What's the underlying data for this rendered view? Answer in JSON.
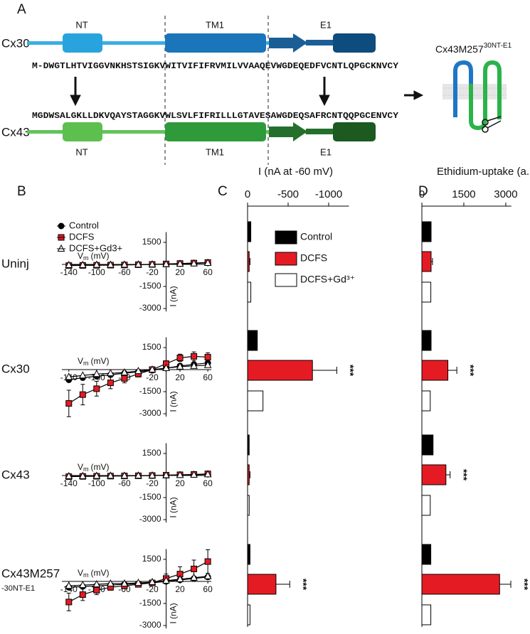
{
  "panel_a": {
    "label": "A",
    "top_name": "Cx30",
    "bottom_name": "Cx43",
    "top_domains": [
      "NT",
      "TM1",
      "E1"
    ],
    "bottom_domains": [
      "NT",
      "TM1",
      "E1"
    ],
    "top_sequence": "M-DWGTLHTVIGGVNKHSTSIGKVWITVIFIFRVMILVVAAQEVWGDEQEDFVCNTLQPGCKNVCY",
    "bottom_sequence": "MGDWSALGKLLDKVQAYSTAGGKVWLSVLFIFRILLLGTAVESAWGDEQSAFRCNTQQPGCENVCY",
    "construct": {
      "name": "Cx43M257",
      "sup": "30NT-E1"
    }
  },
  "panel_labels": {
    "b": "B",
    "c": "C",
    "d": "D"
  },
  "chart_data": [
    {
      "type": "line",
      "title": "Uninj",
      "x": [
        -140,
        -120,
        -100,
        -80,
        -60,
        -40,
        -20,
        0,
        20,
        40,
        60
      ],
      "xlabel": "V",
      "xlabel_sub": "m",
      "xlabel_unit": "(mV)",
      "ylabel": "I (nA)",
      "xlim": [
        -150,
        65
      ],
      "xticks": [
        -140,
        -100,
        -60,
        -20,
        20,
        60
      ],
      "ylim": [
        -3200,
        2200
      ],
      "yticks": [
        1500,
        -1500,
        -3000
      ],
      "legend": true,
      "series": [
        {
          "name": "Control",
          "color": "#000000",
          "marker": "circle",
          "values": [
            -60,
            -50,
            -40,
            -30,
            -20,
            -10,
            0,
            20,
            50,
            80,
            120
          ]
        },
        {
          "name": "DCFS",
          "color": "#e51b23",
          "marker": "square",
          "values": [
            -80,
            -70,
            -60,
            -50,
            -40,
            -20,
            0,
            30,
            60,
            90,
            130
          ],
          "errors": [
            40,
            30,
            30,
            20,
            20,
            20,
            10,
            20,
            30,
            40,
            50
          ]
        },
        {
          "name": "DCFS+Gd3+",
          "color": "#ffffff",
          "marker": "triangle",
          "values": [
            -50,
            -40,
            -30,
            -30,
            -20,
            -10,
            0,
            20,
            40,
            60,
            100
          ]
        }
      ]
    },
    {
      "type": "line",
      "title": "Cx30",
      "x": [
        -140,
        -120,
        -100,
        -80,
        -60,
        -40,
        -20,
        0,
        20,
        40,
        60
      ],
      "xlabel": "V",
      "xlabel_sub": "m",
      "xlabel_unit": "(mV)",
      "ylabel": "I (nA)",
      "xlim": [
        -150,
        65
      ],
      "xticks": [
        -140,
        -100,
        -60,
        -20,
        20,
        60
      ],
      "ylim": [
        -3200,
        2200
      ],
      "yticks": [
        1500,
        -1500,
        -3000
      ],
      "series": [
        {
          "color": "#000000",
          "marker": "circle",
          "values": [
            -700,
            -550,
            -450,
            -350,
            -250,
            -150,
            -50,
            100,
            250,
            350,
            450
          ]
        },
        {
          "color": "#e51b23",
          "marker": "square",
          "values": [
            -2300,
            -1700,
            -1300,
            -900,
            -600,
            -300,
            0,
            400,
            800,
            900,
            850
          ],
          "errors": [
            900,
            700,
            500,
            400,
            300,
            200,
            150,
            200,
            250,
            300,
            300
          ]
        },
        {
          "color": "#ffffff",
          "marker": "triangle",
          "values": [
            -500,
            -400,
            -300,
            -250,
            -200,
            -100,
            0,
            100,
            200,
            250,
            300
          ]
        }
      ]
    },
    {
      "type": "line",
      "title": "Cx43",
      "x": [
        -140,
        -120,
        -100,
        -80,
        -60,
        -40,
        -20,
        0,
        20,
        40,
        60
      ],
      "xlabel": "V",
      "xlabel_sub": "m",
      "xlabel_unit": "(mV)",
      "ylabel": "I (nA)",
      "xlim": [
        -150,
        65
      ],
      "xticks": [
        -140,
        -100,
        -60,
        -20,
        20,
        60
      ],
      "ylim": [
        -3200,
        2200
      ],
      "yticks": [
        1500,
        -1500,
        -3000
      ],
      "series": [
        {
          "color": "#000000",
          "marker": "circle",
          "values": [
            -60,
            -50,
            -40,
            -30,
            -20,
            -10,
            0,
            20,
            40,
            60,
            100
          ]
        },
        {
          "color": "#e51b23",
          "marker": "square",
          "values": [
            -80,
            -60,
            -50,
            -40,
            -30,
            -20,
            0,
            20,
            50,
            70,
            110
          ],
          "errors": [
            40,
            30,
            30,
            20,
            20,
            20,
            10,
            20,
            30,
            40,
            50
          ]
        },
        {
          "color": "#ffffff",
          "marker": "triangle",
          "values": [
            -50,
            -40,
            -30,
            -20,
            -20,
            -10,
            0,
            20,
            30,
            50,
            80
          ]
        }
      ]
    },
    {
      "type": "line",
      "title": "Cx43M257",
      "subtitle": "-30NT-E1",
      "x": [
        -140,
        -120,
        -100,
        -80,
        -60,
        -40,
        -20,
        0,
        20,
        40,
        60
      ],
      "xlabel": "V",
      "xlabel_sub": "m",
      "xlabel_unit": "(mV)",
      "ylabel": "I (nA)",
      "xlim": [
        -150,
        65
      ],
      "xticks": [
        -140,
        -100,
        -60,
        -20,
        20,
        60
      ],
      "ylim": [
        -3200,
        2200
      ],
      "yticks": [
        1500,
        -1500,
        -3000
      ],
      "series": [
        {
          "color": "#000000",
          "marker": "circle",
          "values": [
            -400,
            -350,
            -300,
            -250,
            -200,
            -150,
            -100,
            0,
            100,
            200,
            300
          ]
        },
        {
          "color": "#e51b23",
          "marker": "square",
          "values": [
            -1400,
            -900,
            -600,
            -400,
            -300,
            -200,
            -100,
            200,
            500,
            850,
            1350
          ],
          "errors": [
            600,
            400,
            300,
            200,
            150,
            100,
            100,
            300,
            500,
            600,
            800
          ]
        },
        {
          "color": "#ffffff",
          "marker": "triangle",
          "values": [
            -300,
            -250,
            -200,
            -150,
            -150,
            -100,
            -50,
            50,
            150,
            250,
            350
          ]
        }
      ]
    },
    {
      "type": "hbar",
      "title": "I (nA at -60 mV)",
      "categories": [
        null,
        null,
        null,
        null
      ],
      "xlim": [
        0,
        -1250
      ],
      "xticks": [
        0,
        -500,
        -1000
      ],
      "legend": true,
      "series": [
        {
          "name": "Control",
          "color": "#000000",
          "values": [
            -40,
            -120,
            -20,
            -30
          ]
        },
        {
          "name": "DCFS",
          "color": "#e51b23",
          "values": [
            -20,
            -800,
            -20,
            -350
          ],
          "errors": [
            10,
            300,
            10,
            170
          ]
        },
        {
          "name": "DCFS+Gd³⁺",
          "color": "#ffffff",
          "values": [
            -40,
            -190,
            -20,
            -30
          ]
        }
      ],
      "annotations": [
        {
          "index": 1,
          "text": "***"
        },
        {
          "index": 3,
          "text": "***"
        }
      ]
    },
    {
      "type": "hbar",
      "title": "Ethidium-uptake (a.u)",
      "categories": [
        null,
        null,
        null,
        null
      ],
      "xlim": [
        0,
        3200
      ],
      "xticks": [
        0,
        1500,
        3000
      ],
      "series": [
        {
          "color": "#000000",
          "values": [
            330,
            330,
            400,
            320
          ]
        },
        {
          "color": "#e51b23",
          "values": [
            330,
            930,
            860,
            2780
          ],
          "errors": [
            50,
            320,
            150,
            400
          ]
        },
        {
          "color": "#ffffff",
          "values": [
            320,
            300,
            300,
            320
          ]
        }
      ],
      "annotations": [
        {
          "index": 1,
          "text": "***"
        },
        {
          "index": 2,
          "text": "***"
        },
        {
          "index": 3,
          "text": "***"
        }
      ]
    }
  ]
}
